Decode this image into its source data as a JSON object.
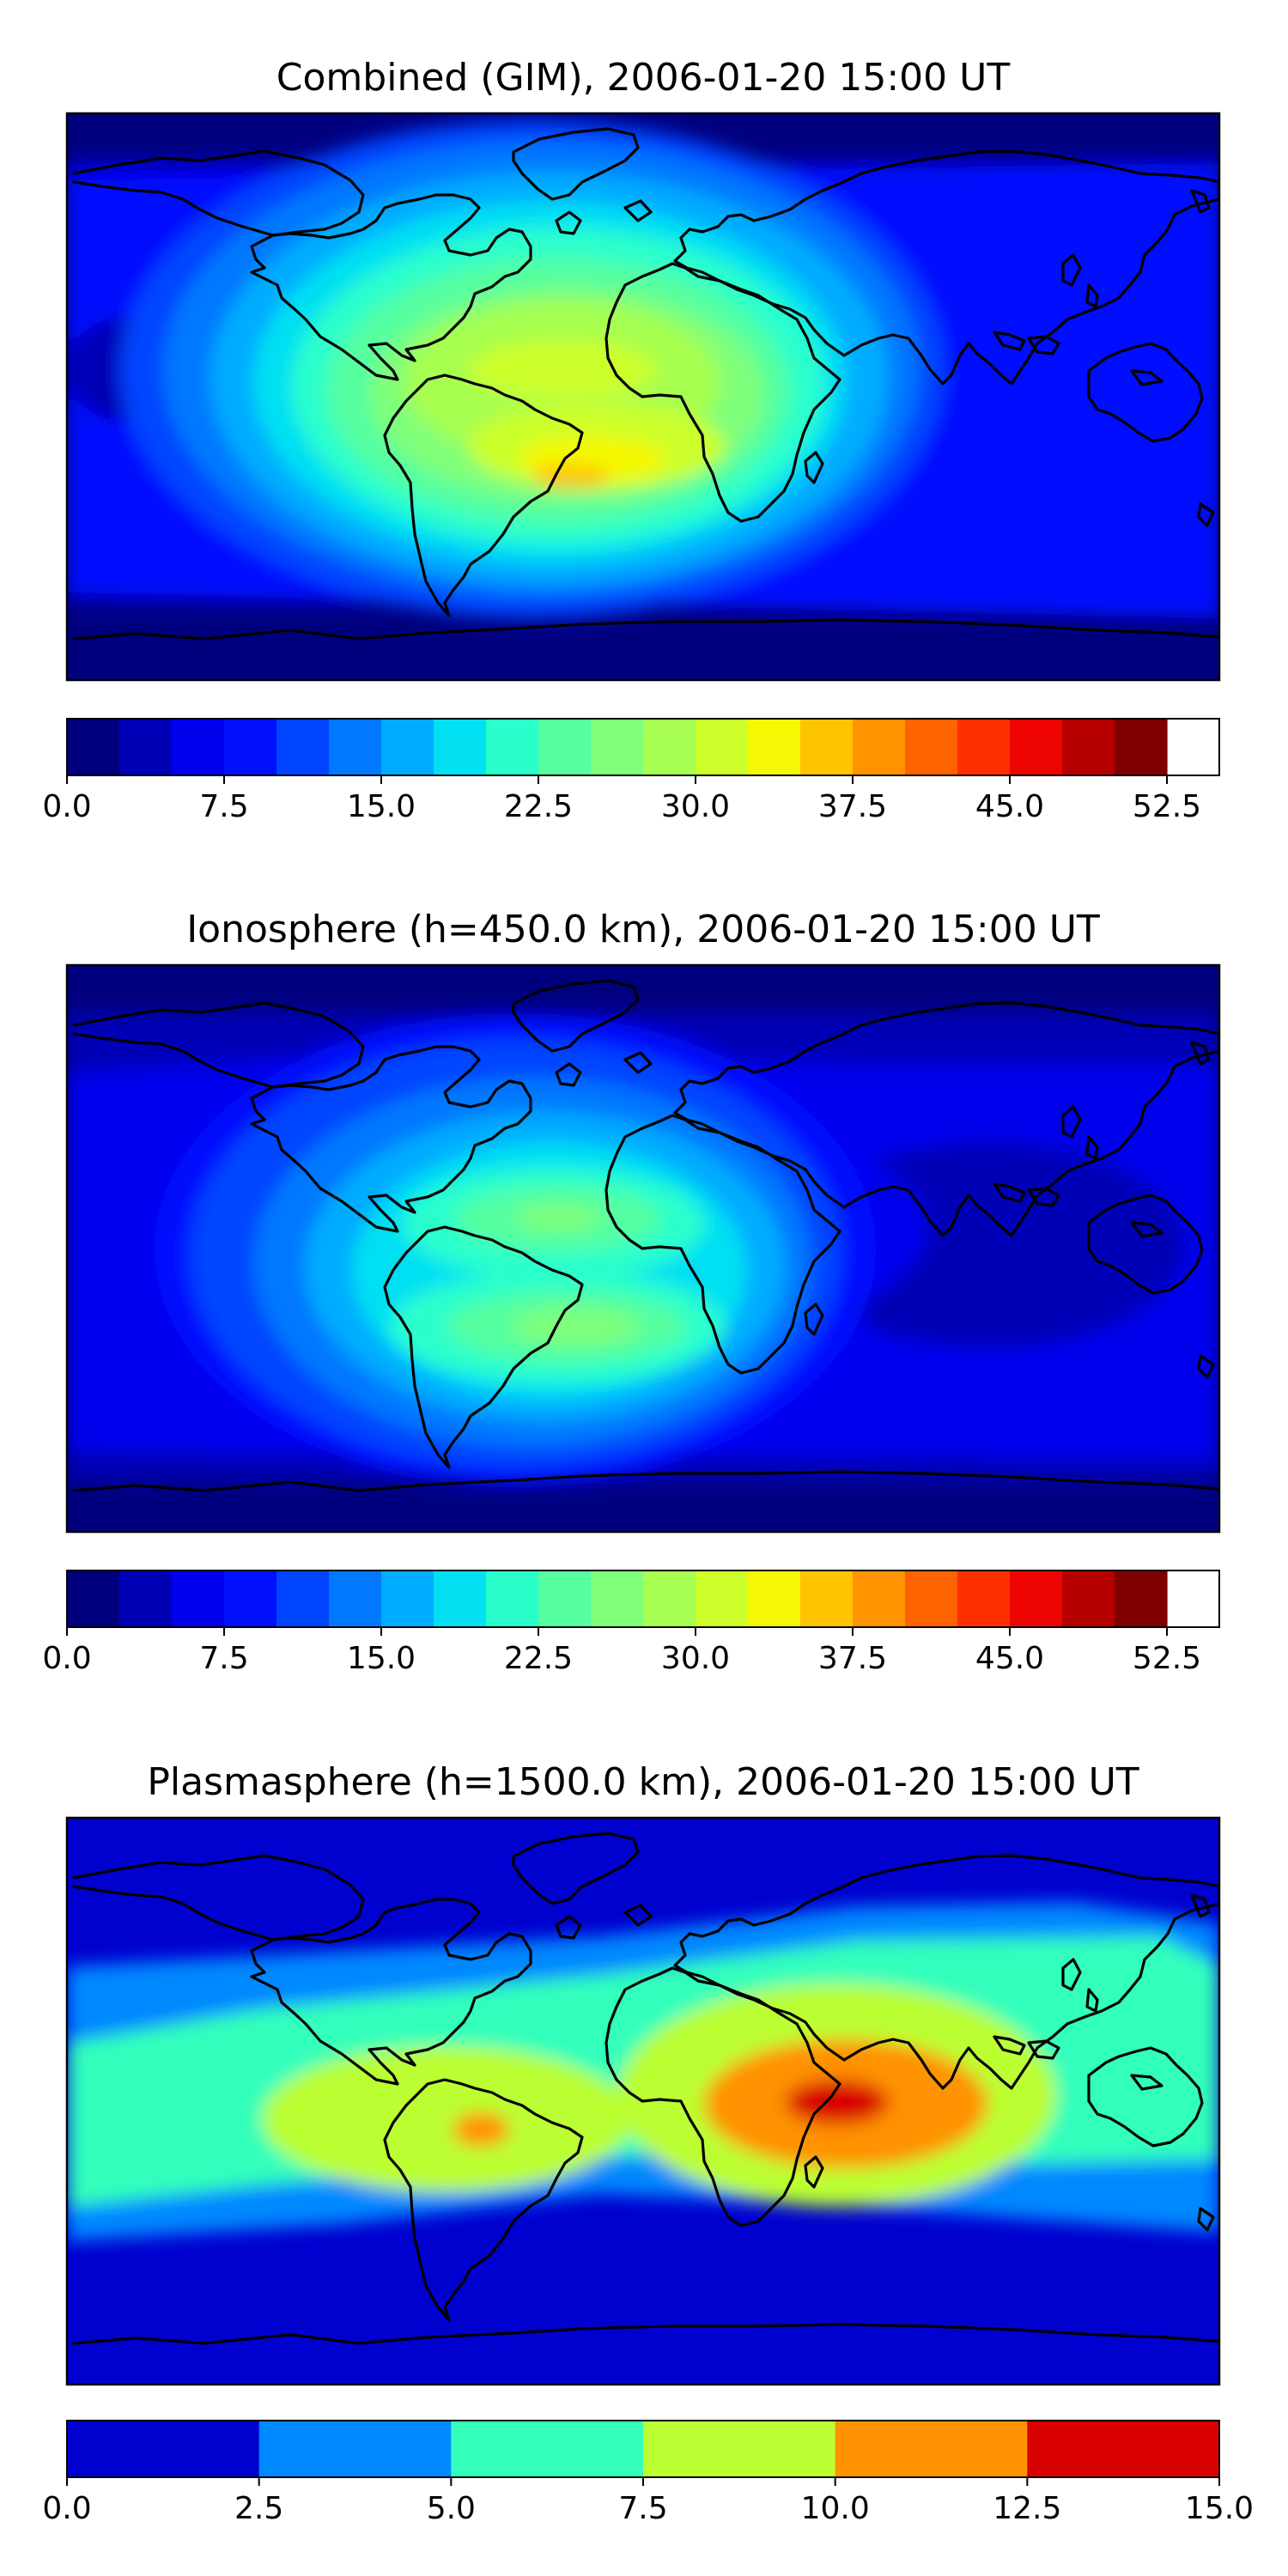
{
  "chart_data": [
    {
      "type": "heatmap",
      "title": "Combined (GIM), 2006-01-20 15:00 UT",
      "projection": "global map, longitude -180 to 180, latitude -90 to 90",
      "colorbar": {
        "min": 0,
        "max": 55,
        "step": 2.5,
        "ticks": [
          0.0,
          7.5,
          15.0,
          22.5,
          30.0,
          37.5,
          45.0,
          52.5
        ],
        "tick_labels": [
          "0.0",
          "7.5",
          "15.0",
          "22.5",
          "30.0",
          "37.5",
          "45.0",
          "52.5"
        ],
        "colors": [
          "#00007f",
          "#0000b6",
          "#0000ed",
          "#0010ff",
          "#0044ff",
          "#0078ff",
          "#00acff",
          "#02e0f2",
          "#2affcc",
          "#55ffa0",
          "#7fff7a",
          "#a6ff50",
          "#ccff2a",
          "#f4f802",
          "#ffc400",
          "#ff9400",
          "#ff6200",
          "#ff3000",
          "#ed0400",
          "#b60000",
          "#7f0000"
        ]
      },
      "features": [
        {
          "name": "main maximum (South Atlantic)",
          "lon": -20,
          "lat": -20,
          "value": 36
        },
        {
          "name": "secondary maximum (equatorial Atlantic)",
          "lon": -20,
          "lat": 5,
          "value": 32
        },
        {
          "name": "background (night side / high latitudes)",
          "value": 5
        }
      ]
    },
    {
      "type": "heatmap",
      "title": "Ionosphere  (h=450.0 km), 2006-01-20 15:00 UT",
      "projection": "global map, longitude -180 to 180, latitude -90 to 90",
      "colorbar": {
        "min": 0,
        "max": 55,
        "step": 2.5,
        "ticks": [
          0.0,
          7.5,
          15.0,
          22.5,
          30.0,
          37.5,
          45.0,
          52.5
        ],
        "tick_labels": [
          "0.0",
          "7.5",
          "15.0",
          "22.5",
          "30.0",
          "37.5",
          "45.0",
          "52.5"
        ],
        "colors": [
          "#00007f",
          "#0000b6",
          "#0000ed",
          "#0010ff",
          "#0044ff",
          "#0078ff",
          "#00acff",
          "#02e0f2",
          "#2affcc",
          "#55ffa0",
          "#7fff7a",
          "#a6ff50",
          "#ccff2a",
          "#f4f802",
          "#ffc400",
          "#ff9400",
          "#ff6200",
          "#ff3000",
          "#ed0400",
          "#b60000",
          "#7f0000"
        ]
      },
      "features": [
        {
          "name": "northern crest (equatorial Atlantic)",
          "lon": -20,
          "lat": 8,
          "value": 30
        },
        {
          "name": "southern crest (South Atlantic)",
          "lon": -15,
          "lat": -18,
          "value": 31
        },
        {
          "name": "background (night side / high latitudes)",
          "value": 3
        }
      ]
    },
    {
      "type": "heatmap",
      "title": "Plasmasphere (h=1500.0 km), 2006-01-20 15:00 UT",
      "projection": "global map, longitude -180 to 180, latitude -90 to 90",
      "colorbar": {
        "min": 0,
        "max": 15,
        "step": 2.5,
        "ticks": [
          0.0,
          2.5,
          5.0,
          7.5,
          10.0,
          12.5,
          15.0
        ],
        "tick_labels": [
          "0.0",
          "2.5",
          "5.0",
          "7.5",
          "10.0",
          "12.5",
          "15.0"
        ],
        "colors": [
          "#0000cf",
          "#0088ff",
          "#33ffbb",
          "#bbff33",
          "#ff9200",
          "#d80000"
        ]
      },
      "features": [
        {
          "name": "maximum (Arabian Sea / Indian Ocean)",
          "lon": 65,
          "lat": 10,
          "value": 13
        },
        {
          "name": "secondary maximum (Brazil)",
          "lon": -52,
          "lat": -8,
          "value": 11
        },
        {
          "name": "background (high latitudes)",
          "value": 1.5
        }
      ]
    }
  ]
}
